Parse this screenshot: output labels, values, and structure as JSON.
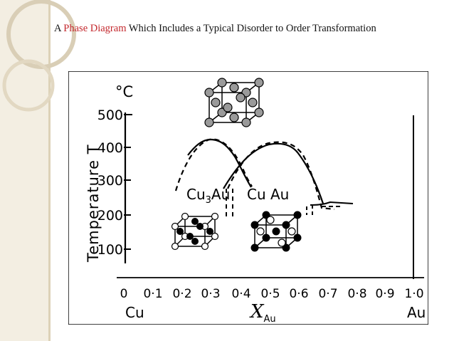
{
  "slide": {
    "title_prefix": "A",
    "title_highlight": "Phase Diagram",
    "title_suffix": "Which Includes  a Typical Disorder to Order Transformation",
    "highlight_color": "#c3262b",
    "background_band_color": "#f3eee2"
  },
  "diagram": {
    "unit_label": "°C",
    "y_axis_label": "Temperature T",
    "y_ticks": [
      "500",
      "400",
      "300",
      "200",
      "100"
    ],
    "x_ticks": [
      "0",
      "0·1",
      "0·2",
      "0·3",
      "0·4",
      "0·5",
      "0·6",
      "0·7",
      "0·8",
      "0·9",
      "1·0"
    ],
    "left_element": "Cu",
    "right_element": "Au",
    "x_axis_label": "X",
    "x_axis_subscript": "Au",
    "phase_cu3au": "Cu",
    "phase_cu3au_sub": "3",
    "phase_cu3au_end": "Au",
    "phase_cuau": "Cu Au"
  }
}
